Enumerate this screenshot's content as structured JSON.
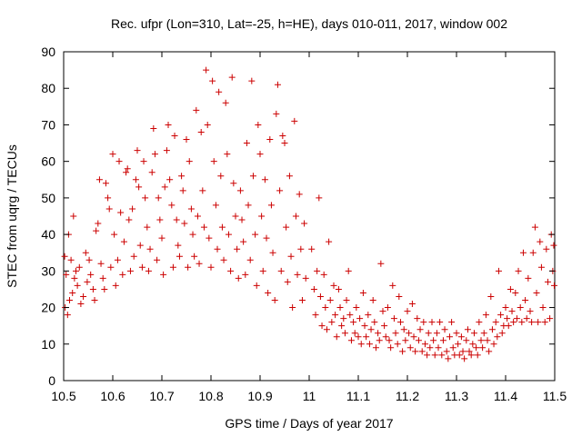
{
  "chart_data": {
    "type": "scatter",
    "title": "Rec. ufpr (Lon=310, Lat=-25, h=HE), days 010-011, 2017, window 002",
    "xlabel": "GPS time / Days of year 2017",
    "ylabel": "STEC from uqrg / TECUs",
    "xlim": [
      10.5,
      11.5
    ],
    "ylim": [
      0,
      90
    ],
    "xticks": [
      10.5,
      10.6,
      10.7,
      10.8,
      10.9,
      11.0,
      11.1,
      11.2,
      11.3,
      11.4,
      11.5
    ],
    "xtick_labels": [
      "10.5",
      "10.6",
      "10.7",
      "10.8",
      "10.9",
      "11",
      "11.1",
      "11.2",
      "11.3",
      "11.4",
      "11.5"
    ],
    "yticks": [
      0,
      10,
      20,
      30,
      40,
      50,
      60,
      70,
      80,
      90
    ],
    "ytick_labels": [
      "0",
      "10",
      "20",
      "30",
      "40",
      "50",
      "60",
      "70",
      "80",
      "90"
    ],
    "grid": false,
    "marker": "+",
    "color": "#cc0000",
    "series": [
      {
        "name": "STEC",
        "points": [
          [
            10.503,
            20
          ],
          [
            10.508,
            18
          ],
          [
            10.512,
            22
          ],
          [
            10.505,
            29
          ],
          [
            10.515,
            33
          ],
          [
            10.502,
            34
          ],
          [
            10.51,
            40
          ],
          [
            10.52,
            45
          ],
          [
            10.518,
            24
          ],
          [
            10.522,
            28
          ],
          [
            10.525,
            30
          ],
          [
            10.528,
            26
          ],
          [
            10.532,
            31
          ],
          [
            10.535,
            21
          ],
          [
            10.54,
            23
          ],
          [
            10.545,
            35
          ],
          [
            10.548,
            27
          ],
          [
            10.552,
            33
          ],
          [
            10.555,
            29
          ],
          [
            10.56,
            25
          ],
          [
            10.563,
            22
          ],
          [
            10.566,
            41
          ],
          [
            10.57,
            43
          ],
          [
            10.573,
            55
          ],
          [
            10.576,
            32
          ],
          [
            10.58,
            28
          ],
          [
            10.583,
            25
          ],
          [
            10.586,
            54
          ],
          [
            10.59,
            50
          ],
          [
            10.593,
            47
          ],
          [
            10.596,
            31
          ],
          [
            10.6,
            62
          ],
          [
            10.603,
            40
          ],
          [
            10.606,
            26
          ],
          [
            10.61,
            33
          ],
          [
            10.613,
            60
          ],
          [
            10.616,
            46
          ],
          [
            10.62,
            29
          ],
          [
            10.623,
            38
          ],
          [
            10.627,
            57
          ],
          [
            10.63,
            58
          ],
          [
            10.633,
            44
          ],
          [
            10.636,
            30
          ],
          [
            10.64,
            47
          ],
          [
            10.643,
            34
          ],
          [
            10.647,
            55
          ],
          [
            10.65,
            63
          ],
          [
            10.653,
            53
          ],
          [
            10.656,
            37
          ],
          [
            10.66,
            31
          ],
          [
            10.663,
            60
          ],
          [
            10.666,
            50
          ],
          [
            10.67,
            42
          ],
          [
            10.673,
            30
          ],
          [
            10.676,
            36
          ],
          [
            10.68,
            57
          ],
          [
            10.683,
            69
          ],
          [
            10.686,
            62
          ],
          [
            10.69,
            33
          ],
          [
            10.693,
            50
          ],
          [
            10.696,
            44
          ],
          [
            10.7,
            39
          ],
          [
            10.703,
            29
          ],
          [
            10.706,
            53
          ],
          [
            10.71,
            63
          ],
          [
            10.713,
            70
          ],
          [
            10.716,
            55
          ],
          [
            10.72,
            48
          ],
          [
            10.723,
            31
          ],
          [
            10.726,
            67
          ],
          [
            10.73,
            44
          ],
          [
            10.733,
            37
          ],
          [
            10.736,
            34
          ],
          [
            10.74,
            56
          ],
          [
            10.743,
            52
          ],
          [
            10.746,
            43
          ],
          [
            10.75,
            66
          ],
          [
            10.753,
            31
          ],
          [
            10.756,
            60
          ],
          [
            10.76,
            47
          ],
          [
            10.763,
            40
          ],
          [
            10.766,
            34
          ],
          [
            10.77,
            74
          ],
          [
            10.773,
            45
          ],
          [
            10.776,
            32
          ],
          [
            10.78,
            68
          ],
          [
            10.783,
            52
          ],
          [
            10.786,
            42
          ],
          [
            10.79,
            85
          ],
          [
            10.793,
            70
          ],
          [
            10.796,
            39
          ],
          [
            10.8,
            31
          ],
          [
            10.803,
            82
          ],
          [
            10.806,
            60
          ],
          [
            10.81,
            48
          ],
          [
            10.813,
            36
          ],
          [
            10.816,
            79
          ],
          [
            10.82,
            56
          ],
          [
            10.823,
            42
          ],
          [
            10.826,
            33
          ],
          [
            10.83,
            76
          ],
          [
            10.833,
            62
          ],
          [
            10.836,
            40
          ],
          [
            10.84,
            30
          ],
          [
            10.843,
            83
          ],
          [
            10.846,
            54
          ],
          [
            10.85,
            45
          ],
          [
            10.853,
            36
          ],
          [
            10.856,
            28
          ],
          [
            10.86,
            52
          ],
          [
            10.863,
            44
          ],
          [
            10.866,
            38
          ],
          [
            10.87,
            29
          ],
          [
            10.873,
            65
          ],
          [
            10.876,
            48
          ],
          [
            10.88,
            33
          ],
          [
            10.883,
            82
          ],
          [
            10.886,
            56
          ],
          [
            10.89,
            40
          ],
          [
            10.893,
            26
          ],
          [
            10.896,
            70
          ],
          [
            10.9,
            62
          ],
          [
            10.903,
            45
          ],
          [
            10.906,
            30
          ],
          [
            10.91,
            55
          ],
          [
            10.913,
            39
          ],
          [
            10.916,
            24
          ],
          [
            10.92,
            66
          ],
          [
            10.923,
            48
          ],
          [
            10.926,
            35
          ],
          [
            10.93,
            22
          ],
          [
            10.933,
            73
          ],
          [
            10.936,
            81
          ],
          [
            10.94,
            52
          ],
          [
            10.943,
            30
          ],
          [
            10.946,
            67
          ],
          [
            10.95,
            65
          ],
          [
            10.953,
            42
          ],
          [
            10.956,
            27
          ],
          [
            10.96,
            56
          ],
          [
            10.963,
            34
          ],
          [
            10.966,
            20
          ],
          [
            10.97,
            71
          ],
          [
            10.973,
            45
          ],
          [
            10.976,
            29
          ],
          [
            10.98,
            51
          ],
          [
            10.983,
            36
          ],
          [
            10.986,
            22
          ],
          [
            10.99,
            43
          ],
          [
            10.993,
            28
          ],
          [
            11.005,
            36
          ],
          [
            11.01,
            25
          ],
          [
            11.013,
            18
          ],
          [
            11.016,
            30
          ],
          [
            11.02,
            50
          ],
          [
            11.023,
            23
          ],
          [
            11.026,
            15
          ],
          [
            11.03,
            29
          ],
          [
            11.033,
            20
          ],
          [
            11.036,
            14
          ],
          [
            11.04,
            38
          ],
          [
            11.043,
            22
          ],
          [
            11.046,
            16
          ],
          [
            11.05,
            26
          ],
          [
            11.053,
            18
          ],
          [
            11.056,
            12
          ],
          [
            11.06,
            25
          ],
          [
            11.063,
            20
          ],
          [
            11.066,
            15
          ],
          [
            11.07,
            17
          ],
          [
            11.073,
            13
          ],
          [
            11.076,
            22
          ],
          [
            11.08,
            30
          ],
          [
            11.083,
            18
          ],
          [
            11.086,
            11
          ],
          [
            11.09,
            16
          ],
          [
            11.093,
            13
          ],
          [
            11.096,
            20
          ],
          [
            11.1,
            12
          ],
          [
            11.103,
            17
          ],
          [
            11.106,
            10
          ],
          [
            11.11,
            24
          ],
          [
            11.113,
            15
          ],
          [
            11.116,
            12
          ],
          [
            11.12,
            18
          ],
          [
            11.123,
            10
          ],
          [
            11.126,
            14
          ],
          [
            11.13,
            22
          ],
          [
            11.133,
            16
          ],
          [
            11.136,
            9
          ],
          [
            11.14,
            13
          ],
          [
            11.143,
            11
          ],
          [
            11.146,
            32
          ],
          [
            11.15,
            19
          ],
          [
            11.153,
            15
          ],
          [
            11.156,
            12
          ],
          [
            11.16,
            20
          ],
          [
            11.163,
            11
          ],
          [
            11.166,
            9
          ],
          [
            11.17,
            26
          ],
          [
            11.173,
            17
          ],
          [
            11.176,
            13
          ],
          [
            11.18,
            10
          ],
          [
            11.183,
            23
          ],
          [
            11.186,
            16
          ],
          [
            11.19,
            8
          ],
          [
            11.193,
            14
          ],
          [
            11.196,
            11
          ],
          [
            11.2,
            19
          ],
          [
            11.203,
            13
          ],
          [
            11.206,
            9
          ],
          [
            11.21,
            21
          ],
          [
            11.213,
            12
          ],
          [
            11.216,
            8
          ],
          [
            11.22,
            17
          ],
          [
            11.223,
            11
          ],
          [
            11.226,
            14
          ],
          [
            11.23,
            8
          ],
          [
            11.233,
            16
          ],
          [
            11.236,
            10
          ],
          [
            11.24,
            7
          ],
          [
            11.243,
            13
          ],
          [
            11.246,
            9
          ],
          [
            11.25,
            16
          ],
          [
            11.253,
            11
          ],
          [
            11.256,
            7
          ],
          [
            11.26,
            13
          ],
          [
            11.263,
            9
          ],
          [
            11.266,
            16
          ],
          [
            11.27,
            7
          ],
          [
            11.273,
            11
          ],
          [
            11.276,
            14
          ],
          [
            11.28,
            8
          ],
          [
            11.283,
            6
          ],
          [
            11.286,
            12
          ],
          [
            11.29,
            16
          ],
          [
            11.293,
            9
          ],
          [
            11.296,
            7
          ],
          [
            11.3,
            13
          ],
          [
            11.303,
            10
          ],
          [
            11.306,
            7
          ],
          [
            11.31,
            12
          ],
          [
            11.313,
            8
          ],
          [
            11.316,
            6
          ],
          [
            11.32,
            11
          ],
          [
            11.323,
            14
          ],
          [
            11.326,
            8
          ],
          [
            11.33,
            7
          ],
          [
            11.333,
            10
          ],
          [
            11.336,
            13
          ],
          [
            11.34,
            9
          ],
          [
            11.343,
            7
          ],
          [
            11.346,
            16
          ],
          [
            11.35,
            11
          ],
          [
            11.353,
            9
          ],
          [
            11.356,
            13
          ],
          [
            11.36,
            18
          ],
          [
            11.363,
            11
          ],
          [
            11.366,
            8
          ],
          [
            11.37,
            23
          ],
          [
            11.373,
            14
          ],
          [
            11.376,
            10
          ],
          [
            11.38,
            16
          ],
          [
            11.383,
            12
          ],
          [
            11.386,
            30
          ],
          [
            11.39,
            18
          ],
          [
            11.393,
            13
          ],
          [
            11.396,
            15
          ],
          [
            11.4,
            20
          ],
          [
            11.403,
            17
          ],
          [
            11.406,
            15
          ],
          [
            11.41,
            25
          ],
          [
            11.413,
            19
          ],
          [
            11.416,
            16
          ],
          [
            11.42,
            24
          ],
          [
            11.423,
            17
          ],
          [
            11.426,
            30
          ],
          [
            11.43,
            20
          ],
          [
            11.433,
            16
          ],
          [
            11.436,
            35
          ],
          [
            11.44,
            22
          ],
          [
            11.443,
            17
          ],
          [
            11.446,
            28
          ],
          [
            11.45,
            19
          ],
          [
            11.453,
            16
          ],
          [
            11.456,
            35
          ],
          [
            11.46,
            42
          ],
          [
            11.463,
            24
          ],
          [
            11.466,
            16
          ],
          [
            11.47,
            38
          ],
          [
            11.473,
            31
          ],
          [
            11.476,
            20
          ],
          [
            11.48,
            16
          ],
          [
            11.483,
            36
          ],
          [
            11.486,
            27
          ],
          [
            11.49,
            17
          ],
          [
            11.493,
            40
          ],
          [
            11.496,
            30
          ],
          [
            11.498,
            37
          ],
          [
            11.499,
            26
          ]
        ]
      }
    ]
  }
}
